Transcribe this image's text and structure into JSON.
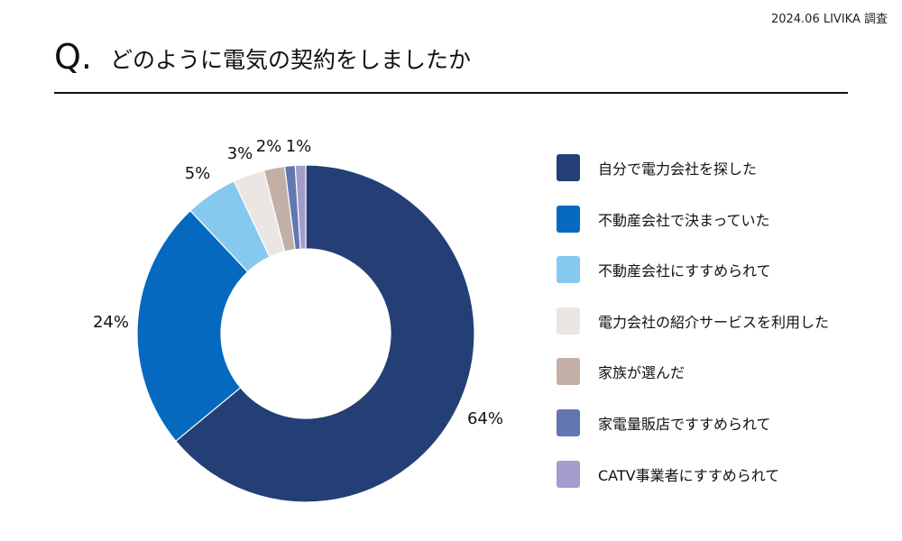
{
  "header": {
    "source": "2024.06 LIVIKA 調査",
    "q_prefix": "Q.",
    "question": "どのように電気の契約をしましたか"
  },
  "chart_data": {
    "type": "pie",
    "donut": true,
    "title": "どのように電気の契約をしましたか",
    "legend_position": "right",
    "unit": "%",
    "categories": [
      "自分で電力会社を探した",
      "不動産会社で決まっていた",
      "不動産会社にすすめられて",
      "電力会社の紹介サービスを利用した",
      "家族が選んだ",
      "家電量販店ですすめられて",
      "CATV事業者にすすめられて"
    ],
    "values": [
      64,
      24,
      5,
      3,
      2,
      1,
      1
    ],
    "labels": [
      "64%",
      "24%",
      "5%",
      "3%",
      "2%",
      "",
      "1%"
    ],
    "colors": [
      "#243f75",
      "#0469bf",
      "#86c9ef",
      "#ebe6e3",
      "#c2b0a6",
      "#6276b2",
      "#a49ccc"
    ]
  }
}
